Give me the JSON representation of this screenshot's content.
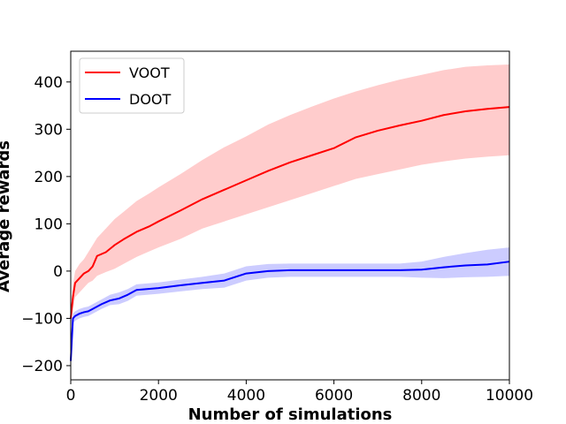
{
  "chart_data": {
    "type": "line",
    "xlabel": "Number of simulations",
    "ylabel": "Average rewards",
    "xlim": [
      0,
      10000
    ],
    "ylim": [
      -230,
      465
    ],
    "xticks": [
      0,
      2000,
      4000,
      6000,
      8000,
      10000
    ],
    "xtick_labels": [
      "0",
      "2000",
      "4000",
      "6000",
      "8000",
      "10000"
    ],
    "yticks": [
      -200,
      -100,
      0,
      100,
      200,
      300,
      400
    ],
    "ytick_labels": [
      "−200",
      "−100",
      "0",
      "100",
      "200",
      "300",
      "400"
    ],
    "grid": false,
    "legend_position": "top-left",
    "series": [
      {
        "name": "VOOT",
        "color": "#ff0000",
        "band_color": "#ffcccc",
        "x": [
          0,
          50,
          100,
          200,
          300,
          400,
          500,
          600,
          800,
          1000,
          1200,
          1500,
          1800,
          2000,
          2500,
          3000,
          3500,
          4000,
          4500,
          5000,
          5500,
          6000,
          6500,
          7000,
          7500,
          8000,
          8500,
          9000,
          9500,
          10000
        ],
        "mean": [
          -100,
          -55,
          -25,
          -15,
          -5,
          0,
          10,
          32,
          40,
          55,
          67,
          83,
          95,
          105,
          128,
          152,
          172,
          192,
          212,
          230,
          245,
          260,
          283,
          297,
          308,
          318,
          330,
          338,
          343,
          347
        ],
        "upper": [
          -90,
          -30,
          0,
          15,
          25,
          40,
          55,
          70,
          90,
          110,
          125,
          148,
          165,
          177,
          205,
          235,
          262,
          285,
          310,
          330,
          348,
          365,
          380,
          393,
          405,
          415,
          425,
          432,
          435,
          437
        ],
        "lower": [
          -115,
          -80,
          -55,
          -45,
          -35,
          -25,
          -20,
          -10,
          -2,
          5,
          15,
          30,
          42,
          50,
          68,
          90,
          105,
          120,
          135,
          150,
          165,
          180,
          195,
          205,
          215,
          225,
          232,
          238,
          242,
          245
        ]
      },
      {
        "name": "DOOT",
        "color": "#0000ff",
        "band_color": "#ccccff",
        "x": [
          0,
          50,
          100,
          200,
          300,
          400,
          500,
          700,
          900,
          1100,
          1300,
          1500,
          2000,
          2500,
          3000,
          3500,
          4000,
          4500,
          5000,
          5500,
          6000,
          6500,
          7000,
          7500,
          8000,
          8500,
          9000,
          9500,
          10000
        ],
        "mean": [
          -190,
          -100,
          -95,
          -90,
          -87,
          -85,
          -80,
          -70,
          -62,
          -58,
          -50,
          -40,
          -36,
          -30,
          -25,
          -20,
          -5,
          0,
          2,
          2,
          2,
          2,
          2,
          2,
          3,
          8,
          12,
          14,
          20
        ],
        "upper": [
          -170,
          -90,
          -85,
          -80,
          -77,
          -75,
          -70,
          -60,
          -50,
          -45,
          -38,
          -28,
          -24,
          -18,
          -12,
          -5,
          10,
          15,
          16,
          16,
          16,
          16,
          16,
          16,
          20,
          30,
          38,
          45,
          50
        ],
        "lower": [
          -210,
          -110,
          -105,
          -100,
          -97,
          -95,
          -90,
          -80,
          -72,
          -70,
          -63,
          -52,
          -48,
          -43,
          -38,
          -35,
          -20,
          -14,
          -12,
          -12,
          -12,
          -12,
          -12,
          -12,
          -14,
          -15,
          -13,
          -12,
          -10
        ]
      }
    ]
  }
}
